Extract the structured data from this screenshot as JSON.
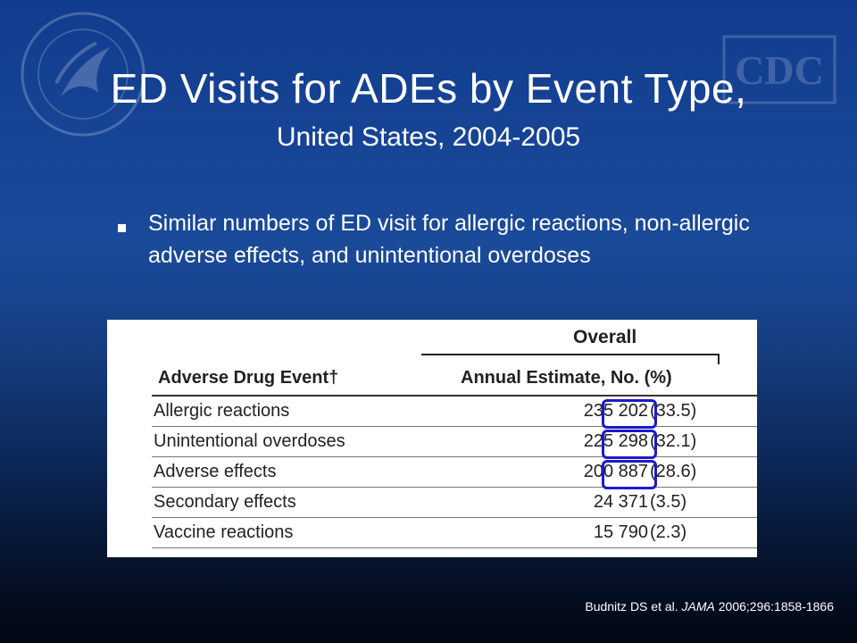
{
  "slide": {
    "title": "ED Visits for ADEs by Event Type,",
    "subtitle": "United States, 2004-2005",
    "bullet": "Similar numbers of ED visit for allergic reactions, non-allergic adverse effects, and unintentional overdoses"
  },
  "table": {
    "group_header": "Overall",
    "col_event": "Adverse Drug Event†",
    "col_estimate": "Annual Estimate, No. (%)",
    "rows": [
      {
        "event": "Allergic reactions",
        "value": "235 202",
        "pct": "(33.5)"
      },
      {
        "event": "Unintentional overdoses",
        "value": "225 298",
        "pct": "(32.1)"
      },
      {
        "event": "Adverse effects",
        "value": "200 887",
        "pct": "(28.6)"
      },
      {
        "event": "Secondary effects",
        "value": "24 371",
        "pct": "(3.5)"
      },
      {
        "event": "Vaccine reactions",
        "value": "15 790",
        "pct": "(2.3)"
      }
    ],
    "highlighted_rows": [
      0,
      1,
      2
    ],
    "highlight_color": "#1a1acc"
  },
  "citation": {
    "authors": "Budnitz DS et al.",
    "journal": "JAMA",
    "ref": "2006;296:1858-1866"
  },
  "logos": {
    "left": "hhs-seal-icon",
    "right": "cdc-logo-icon",
    "cdc_text": "CDC"
  },
  "colors": {
    "background_top": "#123c8f",
    "background_bottom": "#020611",
    "text": "#ffffff"
  }
}
